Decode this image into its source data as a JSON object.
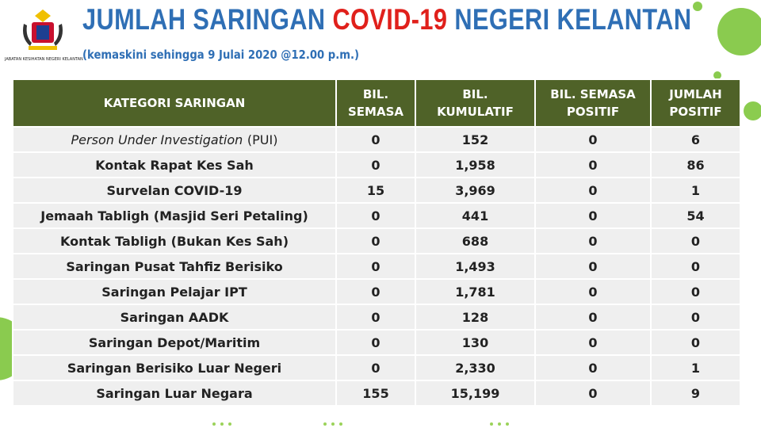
{
  "logo": {
    "caption": "JABATAN KESIHATAN NEGERI KELANTAN"
  },
  "header": {
    "title": {
      "part1": "JUMLAH SARINGAN",
      "highlight": "COVID-19",
      "part3": "NEGERI KELANTAN"
    },
    "subtitle": "(kemaskini sehingga 9 Julai 2020 @12.00 p.m.)"
  },
  "table": {
    "columns": [
      [
        "KATEGORI SARINGAN"
      ],
      [
        "BIL.",
        "SEMASA"
      ],
      [
        "BIL.",
        "KUMULATIF"
      ],
      [
        "BIL. SEMASA",
        "POSITIF"
      ],
      [
        "JUMLAH",
        "POSITIF"
      ]
    ],
    "rows": [
      [
        {
          "italic": "Person Under Investigation",
          "rest": "(PUI)"
        },
        "0",
        "152",
        "0",
        "6"
      ],
      [
        "Kontak Rapat Kes Sah",
        "0",
        "1,958",
        "0",
        "86"
      ],
      [
        "Survelan COVID-19",
        "15",
        "3,969",
        "0",
        "1"
      ],
      [
        "Jemaah Tabligh (Masjid Seri Petaling)",
        "0",
        "441",
        "0",
        "54"
      ],
      [
        "Kontak Tabligh (Bukan Kes Sah)",
        "0",
        "688",
        "0",
        "0"
      ],
      [
        "Saringan Pusat Tahfiz Berisiko",
        "0",
        "1,493",
        "0",
        "0"
      ],
      [
        "Saringan Pelajar IPT",
        "0",
        "1,781",
        "0",
        "0"
      ],
      [
        "Saringan AADK",
        "0",
        "128",
        "0",
        "0"
      ],
      [
        "Saringan Depot/Maritim",
        "0",
        "130",
        "0",
        "0"
      ],
      [
        "Saringan Berisiko Luar Negeri",
        "0",
        "2,330",
        "0",
        "1"
      ],
      [
        "Saringan Luar Negara",
        "155",
        "15,199",
        "0",
        "9"
      ]
    ]
  }
}
